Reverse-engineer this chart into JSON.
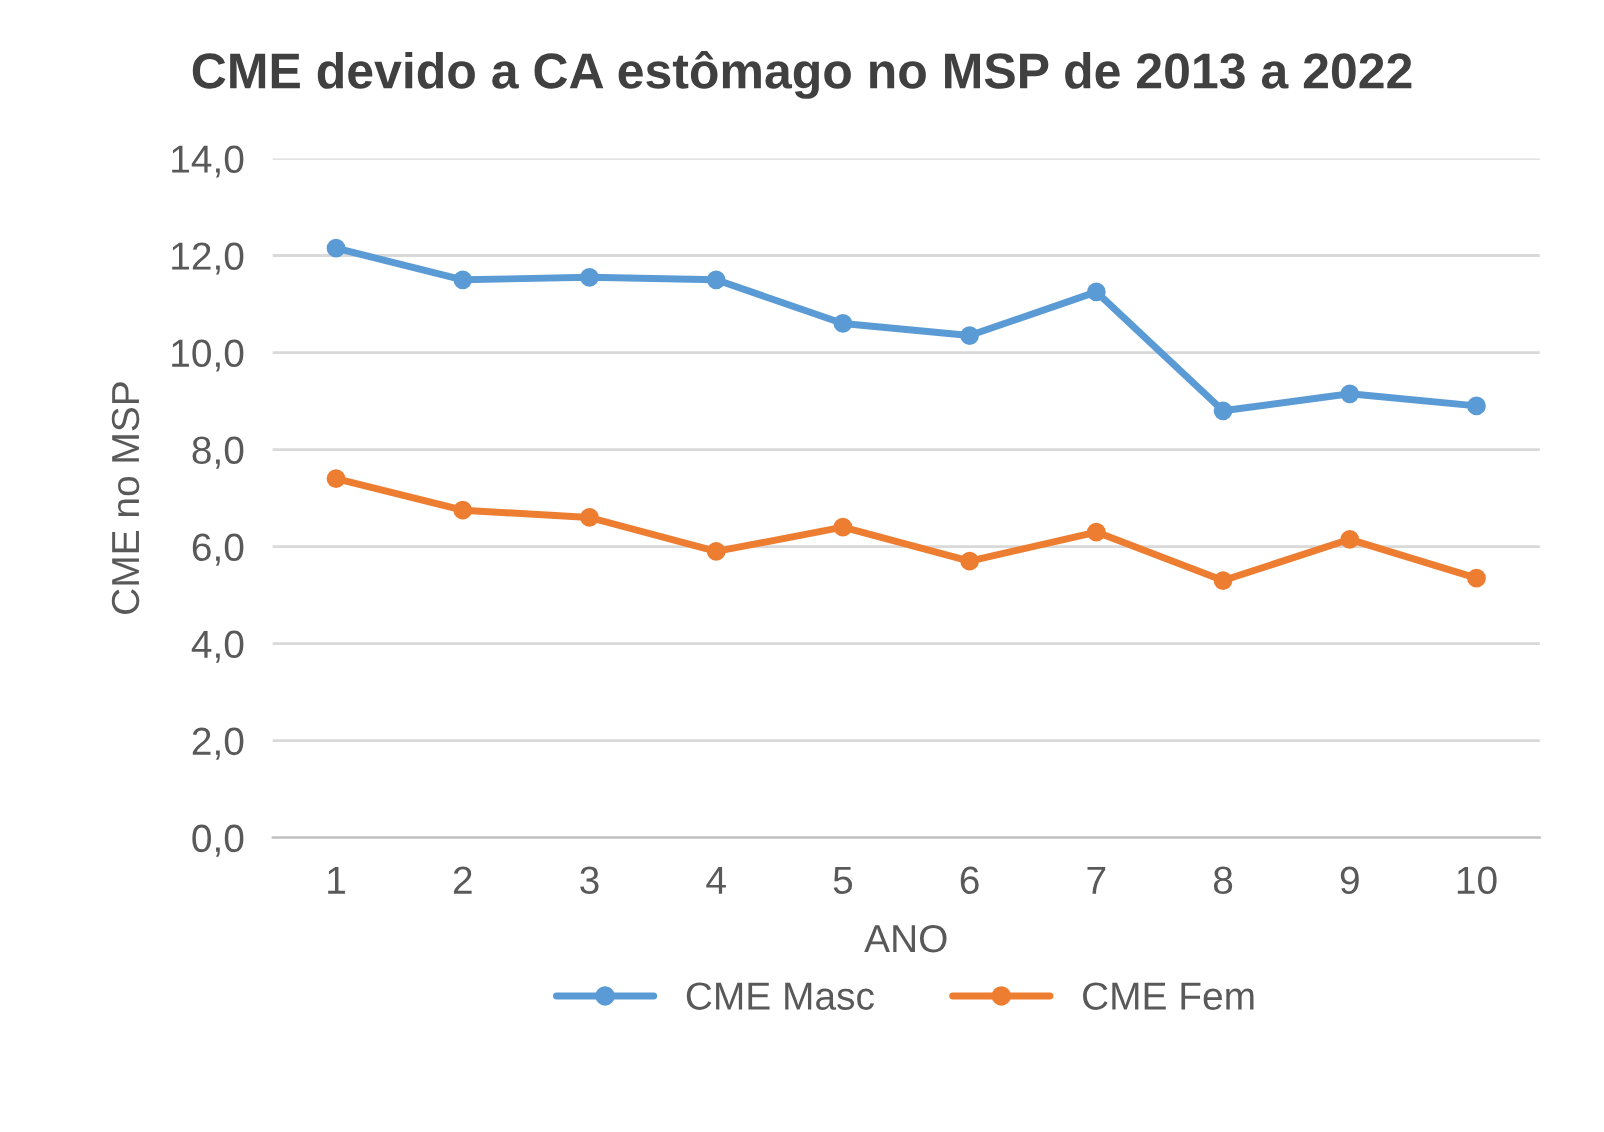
{
  "chart_data": {
    "type": "line",
    "title": "CME devido a CA estômago no MSP de 2013 a 2022",
    "xlabel": "ANO",
    "ylabel": "CME no MSP",
    "categories": [
      "1",
      "2",
      "3",
      "4",
      "5",
      "6",
      "7",
      "8",
      "9",
      "10"
    ],
    "series": [
      {
        "name": "CME Masc",
        "color": "#5b9bd5",
        "values": [
          12.15,
          11.5,
          11.55,
          11.5,
          10.6,
          10.35,
          11.25,
          8.8,
          9.15,
          8.9
        ]
      },
      {
        "name": "CME Fem",
        "color": "#ed7d31",
        "values": [
          7.4,
          6.75,
          6.6,
          5.9,
          6.4,
          5.7,
          6.3,
          5.3,
          6.15,
          5.35
        ]
      }
    ],
    "ylim": [
      0,
      14
    ],
    "yticks": [
      {
        "value": 0,
        "label": "0,0"
      },
      {
        "value": 2,
        "label": "2,0"
      },
      {
        "value": 4,
        "label": "4,0"
      },
      {
        "value": 6,
        "label": "6,0"
      },
      {
        "value": 8,
        "label": "8,0"
      },
      {
        "value": 10,
        "label": "10,0"
      },
      {
        "value": 12,
        "label": "12,0"
      },
      {
        "value": 14,
        "label": "14,0"
      }
    ],
    "grid": "y",
    "legend": "bottom",
    "marker": "circle",
    "line_style": "solid"
  }
}
